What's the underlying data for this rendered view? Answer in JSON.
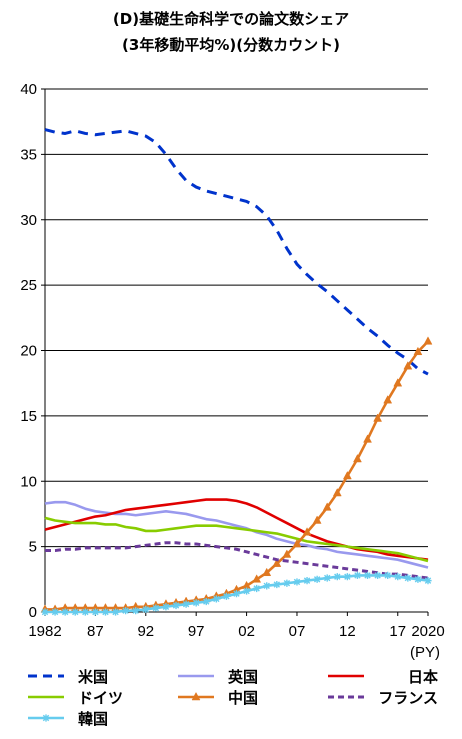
{
  "chart_data": {
    "type": "line",
    "title": "(D)基礎生命科学での論文数シェア",
    "subtitle": "(3年移動平均%)(分数カウント)",
    "xlabel": "(PY)",
    "ylabel": "",
    "x": [
      1982,
      1983,
      1984,
      1985,
      1986,
      1987,
      1988,
      1989,
      1990,
      1991,
      1992,
      1993,
      1994,
      1995,
      1996,
      1997,
      1998,
      1999,
      2000,
      2001,
      2002,
      2003,
      2004,
      2005,
      2006,
      2007,
      2008,
      2009,
      2010,
      2011,
      2012,
      2013,
      2014,
      2015,
      2016,
      2017,
      2018,
      2019,
      2020
    ],
    "xticks": [
      "1982",
      "87",
      "92",
      "97",
      "02",
      "07",
      "12",
      "17",
      "2020"
    ],
    "xtick_values": [
      1982,
      1987,
      1992,
      1997,
      2002,
      2007,
      2012,
      2017,
      2020
    ],
    "yticks": [
      "0",
      "5",
      "10",
      "15",
      "20",
      "25",
      "30",
      "35",
      "40"
    ],
    "ytick_values": [
      0,
      5,
      10,
      15,
      20,
      25,
      30,
      35,
      40
    ],
    "ylim": [
      0,
      40
    ],
    "xlim": [
      1982,
      2020
    ],
    "grid": "horizontal",
    "legend_position": "bottom",
    "series": [
      {
        "name": "米国",
        "color": "#0033cc",
        "style": "dashed",
        "marker": "none",
        "values": [
          36.9,
          36.7,
          36.6,
          36.8,
          36.6,
          36.5,
          36.6,
          36.7,
          36.8,
          36.6,
          36.4,
          35.9,
          35.0,
          33.9,
          33.0,
          32.5,
          32.2,
          32.0,
          31.8,
          31.6,
          31.4,
          31.0,
          30.3,
          29.2,
          27.8,
          26.6,
          25.8,
          25.1,
          24.5,
          23.8,
          23.1,
          22.4,
          21.7,
          21.1,
          20.4,
          19.8,
          19.3,
          18.6,
          18.2
        ]
      },
      {
        "name": "英国",
        "color": "#9999ee",
        "style": "solid",
        "marker": "none",
        "values": [
          8.3,
          8.4,
          8.4,
          8.2,
          7.9,
          7.7,
          7.6,
          7.5,
          7.5,
          7.4,
          7.5,
          7.6,
          7.7,
          7.6,
          7.5,
          7.3,
          7.1,
          7.0,
          6.8,
          6.6,
          6.4,
          6.1,
          5.9,
          5.6,
          5.4,
          5.2,
          5.1,
          4.9,
          4.8,
          4.6,
          4.5,
          4.4,
          4.3,
          4.2,
          4.1,
          4.0,
          3.8,
          3.6,
          3.4
        ]
      },
      {
        "name": "日本",
        "color": "#e00000",
        "style": "solid",
        "marker": "none",
        "values": [
          6.3,
          6.5,
          6.7,
          6.9,
          7.1,
          7.3,
          7.4,
          7.6,
          7.8,
          7.9,
          8.0,
          8.1,
          8.2,
          8.3,
          8.4,
          8.5,
          8.6,
          8.6,
          8.6,
          8.5,
          8.3,
          8.0,
          7.6,
          7.2,
          6.8,
          6.4,
          6.0,
          5.7,
          5.4,
          5.2,
          5.0,
          4.8,
          4.7,
          4.6,
          4.4,
          4.3,
          4.2,
          4.1,
          4.0
        ]
      },
      {
        "name": "ドイツ",
        "color": "#88cc00",
        "style": "solid",
        "marker": "none",
        "values": [
          7.2,
          7.0,
          6.9,
          6.8,
          6.8,
          6.8,
          6.7,
          6.7,
          6.5,
          6.4,
          6.2,
          6.2,
          6.3,
          6.4,
          6.5,
          6.6,
          6.6,
          6.6,
          6.5,
          6.4,
          6.3,
          6.2,
          6.1,
          6.0,
          5.8,
          5.6,
          5.4,
          5.3,
          5.2,
          5.1,
          5.0,
          4.9,
          4.8,
          4.7,
          4.6,
          4.5,
          4.3,
          4.1,
          3.9
        ]
      },
      {
        "name": "中国",
        "color": "#e07820",
        "style": "solid",
        "marker": "triangle",
        "values": [
          0.2,
          0.2,
          0.3,
          0.3,
          0.3,
          0.3,
          0.3,
          0.3,
          0.3,
          0.4,
          0.4,
          0.5,
          0.6,
          0.7,
          0.8,
          0.9,
          1.0,
          1.2,
          1.4,
          1.7,
          2.0,
          2.5,
          3.0,
          3.7,
          4.4,
          5.2,
          6.1,
          7.0,
          8.0,
          9.1,
          10.4,
          11.7,
          13.2,
          14.8,
          16.2,
          17.5,
          18.8,
          19.9,
          20.7
        ]
      },
      {
        "name": "フランス",
        "color": "#6a3a9a",
        "style": "dashed",
        "marker": "none",
        "values": [
          4.7,
          4.7,
          4.8,
          4.8,
          4.9,
          4.9,
          4.9,
          4.9,
          4.9,
          5.0,
          5.1,
          5.2,
          5.3,
          5.3,
          5.2,
          5.2,
          5.1,
          5.0,
          4.9,
          4.8,
          4.6,
          4.4,
          4.2,
          4.0,
          3.9,
          3.8,
          3.7,
          3.6,
          3.5,
          3.4,
          3.3,
          3.2,
          3.1,
          3.0,
          2.9,
          2.9,
          2.8,
          2.7,
          2.6
        ]
      },
      {
        "name": "韓国",
        "color": "#66ccee",
        "style": "solid",
        "marker": "star",
        "values": [
          0.0,
          0.0,
          0.0,
          0.0,
          0.0,
          0.0,
          0.0,
          0.0,
          0.1,
          0.1,
          0.2,
          0.3,
          0.4,
          0.5,
          0.6,
          0.7,
          0.8,
          1.0,
          1.2,
          1.4,
          1.6,
          1.8,
          2.0,
          2.1,
          2.2,
          2.3,
          2.4,
          2.5,
          2.6,
          2.7,
          2.7,
          2.8,
          2.8,
          2.8,
          2.8,
          2.7,
          2.6,
          2.5,
          2.4
        ]
      }
    ]
  }
}
